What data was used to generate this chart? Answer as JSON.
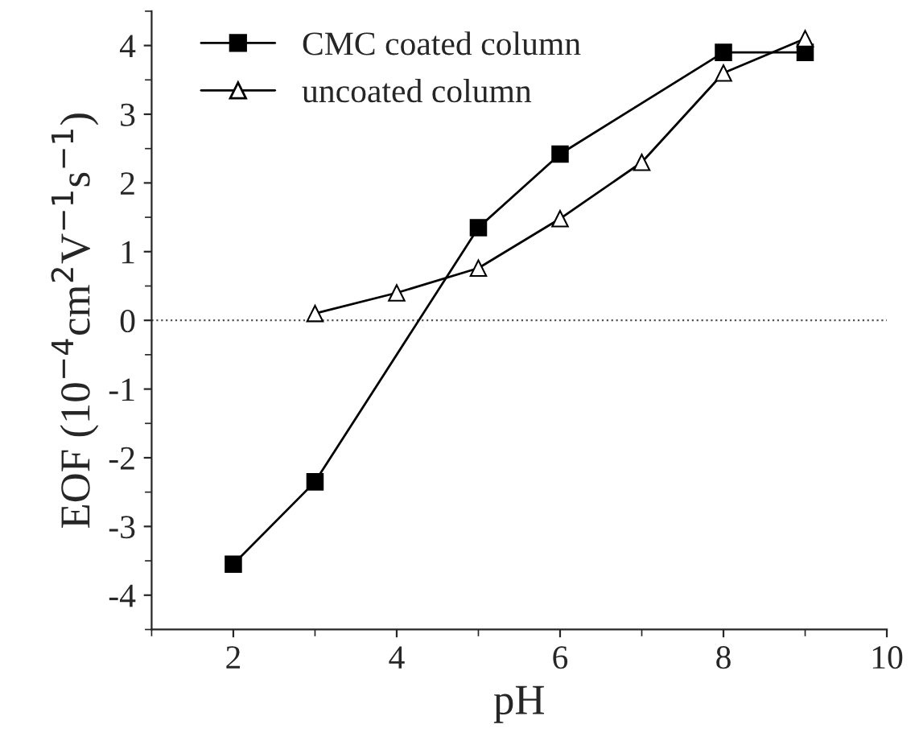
{
  "chart_data": {
    "type": "line",
    "xlabel": "pH",
    "ylabel": "EOF (10$^{−4}$cm$^{2}$V$^{−1}$s$^{−1}$)",
    "series": [
      {
        "name": "CMC coated column",
        "color": "#000000",
        "marker": "square",
        "x": [
          2,
          3,
          5,
          6,
          8,
          9
        ],
        "values": [
          -3.55,
          -2.35,
          1.35,
          2.42,
          3.9,
          3.9
        ]
      },
      {
        "name": "uncoated column",
        "color": "#000000",
        "marker": "triangle",
        "x": [
          3,
          4,
          5,
          6,
          7,
          8,
          9
        ],
        "values": [
          0.1,
          0.4,
          0.76,
          1.48,
          2.3,
          3.6,
          4.1
        ]
      }
    ],
    "xlim": [
      1,
      10
    ],
    "xticks": [
      2,
      4,
      6,
      8,
      10
    ],
    "ylim": [
      -4.5,
      4.5
    ],
    "yticks": [
      -4,
      -3,
      -2,
      -1,
      0,
      1,
      2,
      3,
      4
    ],
    "ref_lines": [
      {
        "axis": "y",
        "value": 0,
        "color": "#555555",
        "line_style": "dotted"
      }
    ],
    "legend": "top left",
    "grid": false,
    "line_style": "solid"
  }
}
